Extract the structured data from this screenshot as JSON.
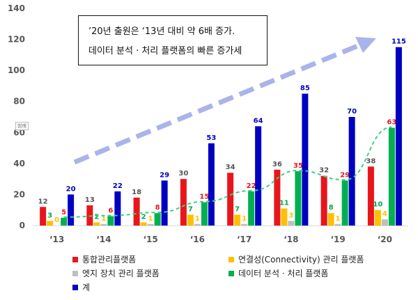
{
  "annotation": {
    "line1": "’20년 출원은 ‘13년 대비 약 6배 증가.",
    "line2": "데이터 분석 · 처리 플랫폼의 빠른 증가세"
  },
  "tag_label": "범례",
  "colors": {
    "integrated": "#e8161b",
    "connectivity": "#ffc000",
    "edge": "#bfbfbf",
    "data": "#00b050",
    "total": "#0000c0",
    "arrow": "#a9b4ea",
    "trend": "#3bcf82"
  },
  "chart_data": {
    "type": "bar",
    "categories": [
      "‘13",
      "‘14",
      "‘15",
      "‘16",
      "‘17",
      "‘18",
      "‘19",
      "‘20"
    ],
    "ylim": [
      0,
      140
    ],
    "yticks": [
      0,
      20,
      40,
      60,
      80,
      100,
      120,
      140
    ],
    "series": [
      {
        "key": "integrated",
        "name": "통합관리플랫폼",
        "values": [
          12,
          13,
          18,
          30,
          34,
          36,
          32,
          38
        ],
        "label_color": "#555555"
      },
      {
        "key": "connectivity",
        "name": "연결성(Connectivity) 관리 플랫폼",
        "values": [
          3,
          2,
          2,
          7,
          7,
          11,
          8,
          10
        ],
        "label_color": "#00a94f"
      },
      {
        "key": "edge",
        "name": "엣지 장치 관리 플랫폼",
        "values": [
          0,
          1,
          1,
          1,
          1,
          3,
          1,
          4
        ],
        "label_color": "#ffc000"
      },
      {
        "key": "data",
        "name": "데이터 분석 · 처리 플랫폼",
        "values": [
          5,
          6,
          8,
          15,
          22,
          35,
          29,
          63
        ],
        "label_color": "#e8161b"
      },
      {
        "key": "total",
        "name": "계",
        "values": [
          20,
          22,
          29,
          53,
          64,
          85,
          70,
          115
        ],
        "label_color": "#0000c0"
      }
    ],
    "trend_series": "data",
    "legend": [
      {
        "key": "integrated",
        "label": "통합관리플랫폼"
      },
      {
        "key": "connectivity",
        "label": "연결성(Connectivity) 관리 플랫폼"
      },
      {
        "key": "edge",
        "label": "엣지 장치 관리 플랫폼"
      },
      {
        "key": "data",
        "label": "데이터 분석 · 처리 플랫폼"
      },
      {
        "key": "total",
        "label": "계"
      }
    ]
  }
}
